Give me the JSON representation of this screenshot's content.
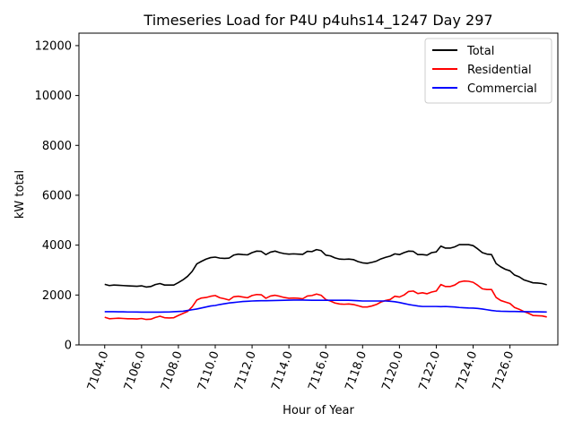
{
  "chart_data": {
    "type": "line",
    "title": "Timeseries Load for P4U p4uhs14_1247  Day 297",
    "xlabel": "Hour of Year",
    "ylabel": "kW total",
    "xlim": [
      7102.6,
      7128.6
    ],
    "ylim": [
      0,
      12500
    ],
    "x_ticks": [
      7104,
      7106,
      7108,
      7110,
      7112,
      7114,
      7116,
      7118,
      7120,
      7122,
      7124,
      7126
    ],
    "x_tick_labels": [
      "7104.0",
      "7106.0",
      "7108.0",
      "7110.0",
      "7112.0",
      "7114.0",
      "7116.0",
      "7118.0",
      "7120.0",
      "7122.0",
      "7124.0",
      "7126.0"
    ],
    "y_ticks": [
      0,
      2000,
      4000,
      6000,
      8000,
      10000,
      12000
    ],
    "y_tick_labels": [
      "0",
      "2000",
      "4000",
      "6000",
      "8000",
      "10000",
      "12000"
    ],
    "legend_position": "top-right",
    "x_start": 7104.0,
    "x_step": 0.25,
    "series": [
      {
        "name": "Total",
        "color": "#000000",
        "values": [
          2430,
          2380,
          2400,
          2390,
          2380,
          2370,
          2360,
          2350,
          2370,
          2320,
          2340,
          2420,
          2460,
          2400,
          2400,
          2400,
          2500,
          2610,
          2750,
          2950,
          3250,
          3350,
          3440,
          3500,
          3520,
          3480,
          3470,
          3480,
          3600,
          3640,
          3620,
          3610,
          3700,
          3760,
          3750,
          3620,
          3720,
          3760,
          3700,
          3660,
          3640,
          3650,
          3640,
          3630,
          3750,
          3740,
          3820,
          3780,
          3600,
          3570,
          3490,
          3440,
          3430,
          3440,
          3420,
          3340,
          3290,
          3270,
          3310,
          3360,
          3450,
          3510,
          3560,
          3650,
          3620,
          3700,
          3760,
          3750,
          3620,
          3620,
          3600,
          3700,
          3730,
          3960,
          3880,
          3880,
          3930,
          4020,
          4020,
          4020,
          3980,
          3850,
          3700,
          3640,
          3620,
          3260,
          3130,
          3030,
          2970,
          2800,
          2730,
          2610,
          2550,
          2490,
          2480,
          2460,
          2410
        ]
      },
      {
        "name": "Residential",
        "color": "#ff0000",
        "values": [
          1110,
          1050,
          1060,
          1070,
          1060,
          1050,
          1050,
          1040,
          1060,
          1020,
          1030,
          1100,
          1150,
          1090,
          1080,
          1090,
          1180,
          1260,
          1340,
          1530,
          1800,
          1880,
          1900,
          1950,
          1980,
          1890,
          1850,
          1800,
          1930,
          1950,
          1920,
          1890,
          1980,
          2020,
          2010,
          1870,
          1960,
          1990,
          1950,
          1900,
          1870,
          1880,
          1870,
          1850,
          1960,
          1980,
          2040,
          1990,
          1820,
          1760,
          1680,
          1640,
          1630,
          1640,
          1620,
          1570,
          1520,
          1520,
          1560,
          1620,
          1720,
          1780,
          1820,
          1950,
          1920,
          2000,
          2140,
          2160,
          2060,
          2090,
          2050,
          2120,
          2160,
          2420,
          2340,
          2340,
          2400,
          2520,
          2560,
          2550,
          2510,
          2390,
          2250,
          2220,
          2220,
          1900,
          1780,
          1720,
          1660,
          1500,
          1430,
          1340,
          1270,
          1180,
          1170,
          1160,
          1120
        ]
      },
      {
        "name": "Commercial",
        "color": "#0000ff",
        "values": [
          1330,
          1330,
          1330,
          1325,
          1325,
          1320,
          1320,
          1318,
          1315,
          1315,
          1312,
          1315,
          1315,
          1318,
          1320,
          1330,
          1340,
          1350,
          1380,
          1410,
          1440,
          1480,
          1520,
          1560,
          1580,
          1620,
          1650,
          1680,
          1700,
          1720,
          1740,
          1750,
          1760,
          1765,
          1770,
          1770,
          1775,
          1780,
          1785,
          1790,
          1795,
          1800,
          1800,
          1800,
          1795,
          1790,
          1790,
          1790,
          1790,
          1790,
          1790,
          1790,
          1790,
          1790,
          1780,
          1770,
          1760,
          1760,
          1760,
          1760,
          1760,
          1760,
          1750,
          1730,
          1700,
          1660,
          1620,
          1590,
          1560,
          1540,
          1540,
          1540,
          1540,
          1535,
          1540,
          1530,
          1520,
          1500,
          1490,
          1480,
          1475,
          1460,
          1440,
          1410,
          1380,
          1360,
          1350,
          1345,
          1340,
          1340,
          1335,
          1330,
          1330,
          1328,
          1325,
          1322,
          1320
        ]
      }
    ]
  }
}
